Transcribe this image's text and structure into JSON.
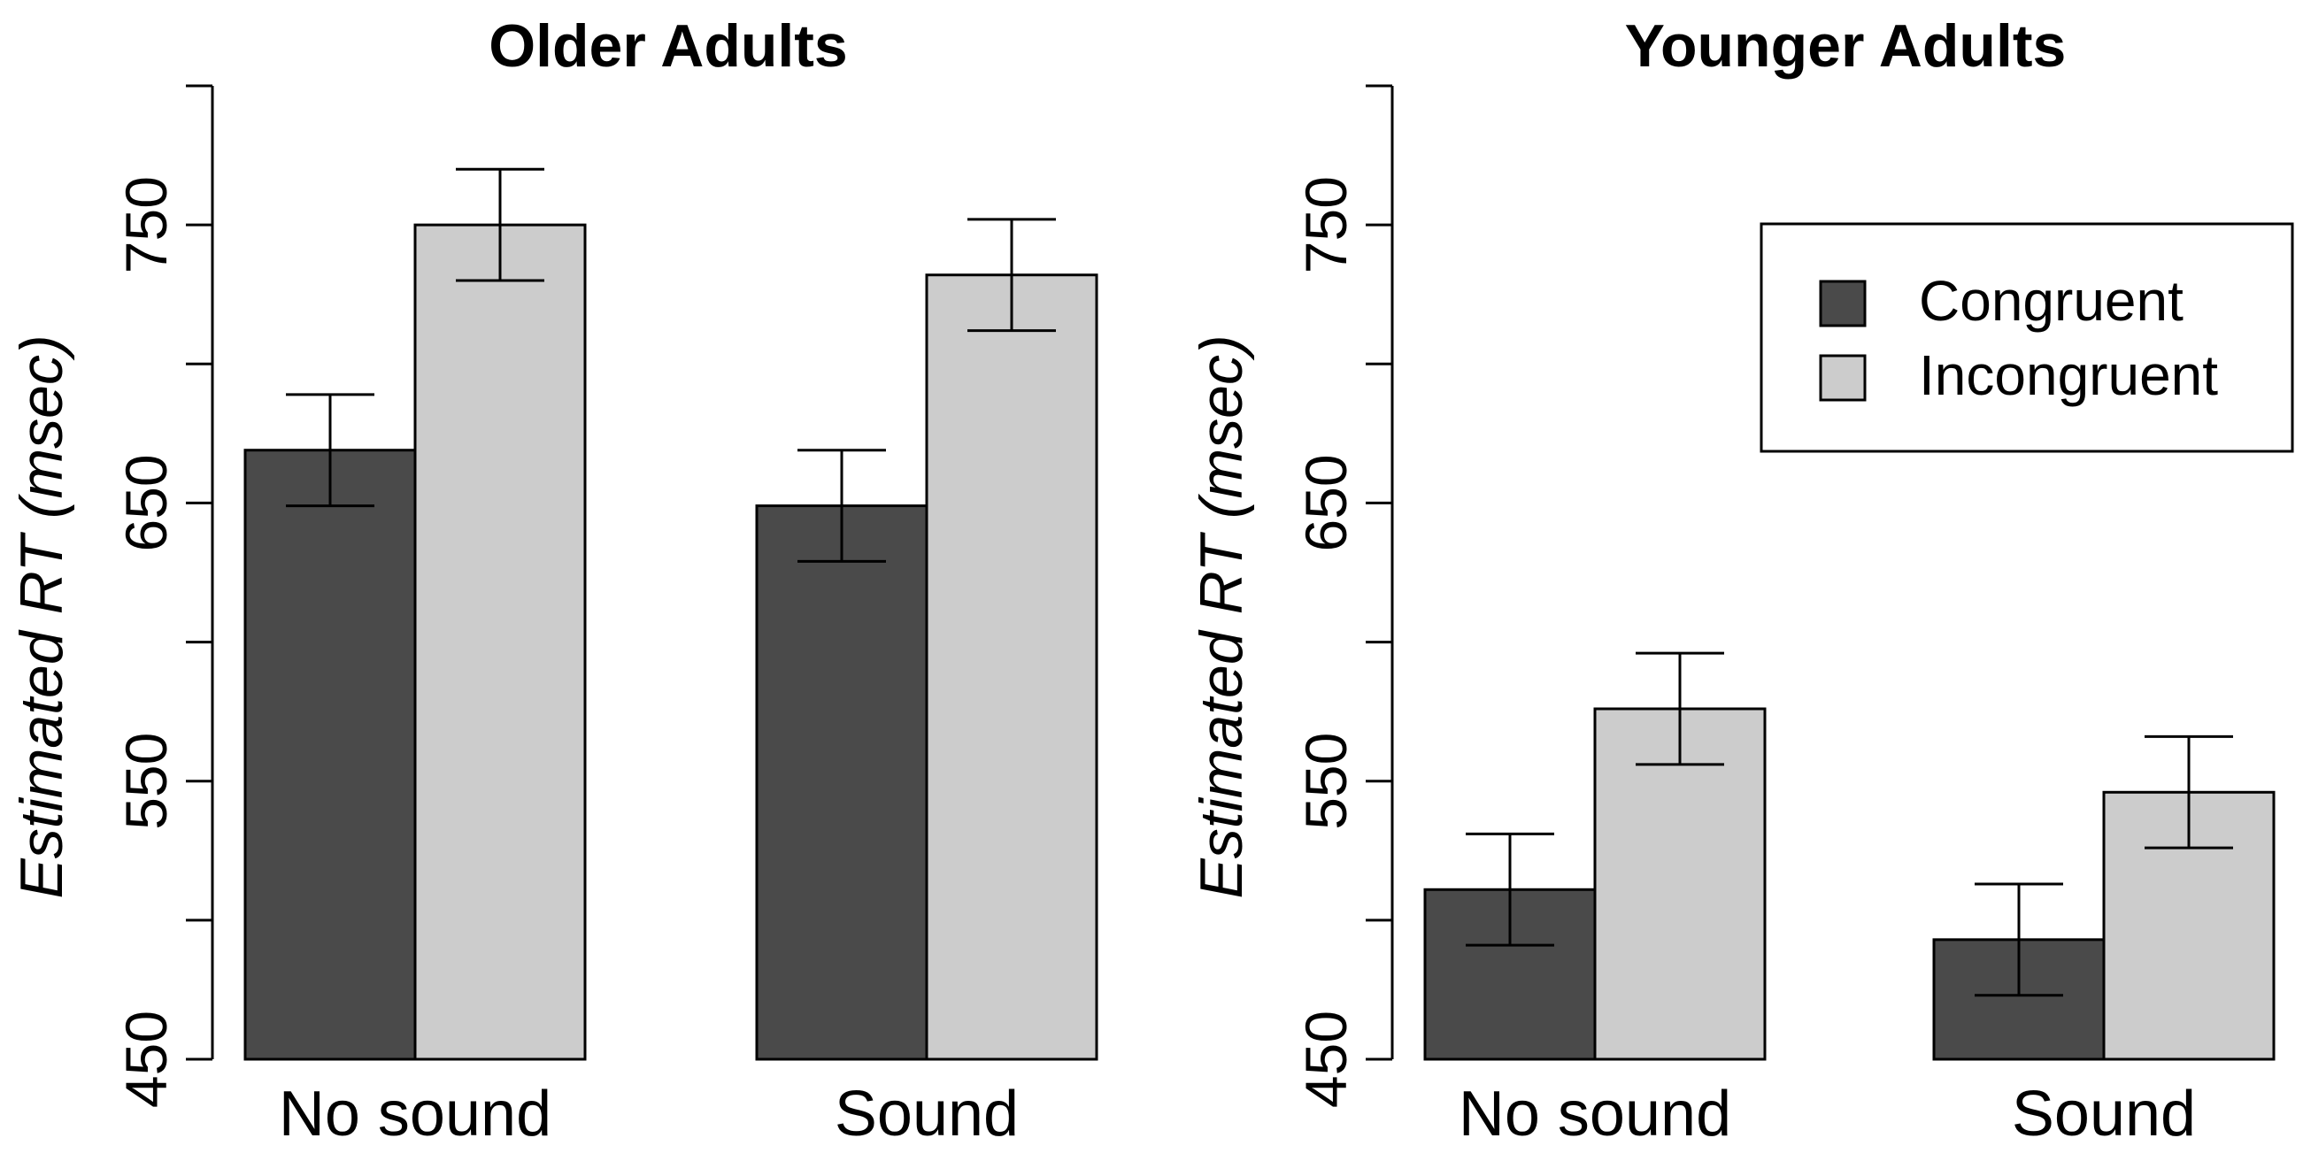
{
  "chart_data": [
    {
      "type": "bar",
      "title": "Older Adults",
      "ylabel": "Estimated RT (msec)",
      "xlabel": "",
      "ylim": [
        450,
        800
      ],
      "yticks": [
        450,
        500,
        550,
        600,
        650,
        700,
        750,
        800
      ],
      "ytick_labels": [
        "450",
        "550",
        "650",
        "750"
      ],
      "categories": [
        "No sound",
        "Sound"
      ],
      "series": [
        {
          "name": "Congruent",
          "color": "#4a4a4a",
          "values": [
            669,
            649
          ],
          "error": [
            20,
            20
          ]
        },
        {
          "name": "Incongruent",
          "color": "#cccccc",
          "values": [
            750,
            732
          ],
          "error": [
            20,
            20
          ]
        }
      ]
    },
    {
      "type": "bar",
      "title": "Younger Adults",
      "ylabel": "Estimated RT (msec)",
      "xlabel": "",
      "ylim": [
        450,
        800
      ],
      "yticks": [
        450,
        500,
        550,
        600,
        650,
        700,
        750,
        800
      ],
      "ytick_labels": [
        "450",
        "550",
        "650",
        "750"
      ],
      "categories": [
        "No sound",
        "Sound"
      ],
      "series": [
        {
          "name": "Congruent",
          "color": "#4a4a4a",
          "values": [
            511,
            493
          ],
          "error": [
            20,
            20
          ]
        },
        {
          "name": "Incongruent",
          "color": "#cccccc",
          "values": [
            576,
            546
          ],
          "error": [
            20,
            20
          ]
        }
      ],
      "legend": {
        "position": "top-right",
        "entries": [
          "Congruent",
          "Incongruent"
        ]
      }
    }
  ]
}
